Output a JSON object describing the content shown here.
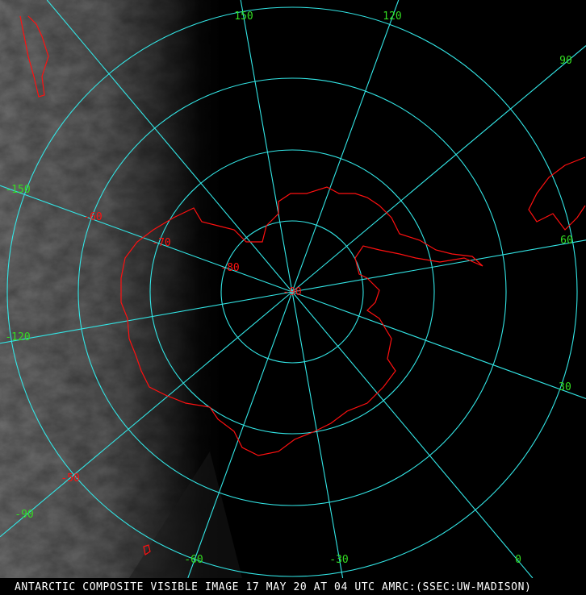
{
  "caption": "ANTARCTIC COMPOSITE VISIBLE IMAGE 17 MAY 20 AT 04 UTC AMRC:(SSEC:UW-MADISON)",
  "longitude_labels": [
    "150",
    "120",
    "90",
    "60",
    "30",
    "0",
    "-30",
    "-60",
    "-90",
    "-120",
    "-150"
  ],
  "latitude_labels": [
    "-50",
    "-60",
    "-70",
    "-80",
    "-90"
  ],
  "projection": "south-polar-stereographic",
  "colors": {
    "graticule": "#33e6e6",
    "coastline": "#ff1010",
    "longitude_label": "#33dd22",
    "latitude_label": "#ff1010",
    "caption": "#ffffff"
  }
}
